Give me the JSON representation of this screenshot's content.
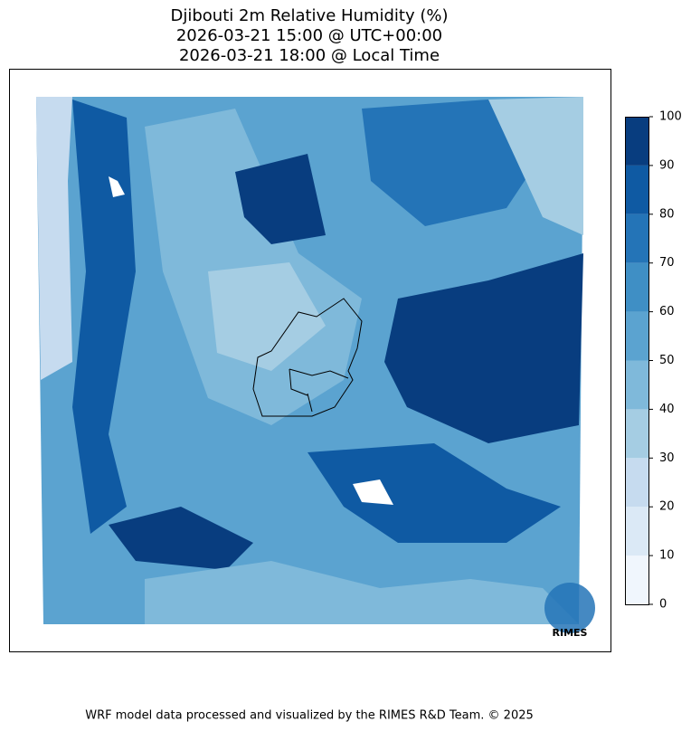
{
  "title": [
    "Djibouti 2m Relative Humidity (%)",
    "2026-03-21 15:00 @ UTC+00:00",
    "2026-03-21 18:00 @ Local Time"
  ],
  "colorbar": {
    "lim": [
      0,
      100
    ],
    "ticks": [
      0,
      10,
      20,
      30,
      40,
      50,
      60,
      70,
      80,
      90,
      100
    ],
    "colors": [
      "#f0f6fd",
      "#dbe9f6",
      "#c6dbef",
      "#a5cde3",
      "#7fb9da",
      "#5ba3d0",
      "#3f8fc5",
      "#2474b7",
      "#0f5aa3",
      "#083d7f"
    ]
  },
  "logo": "RIMES",
  "footer": "WRF model data processed and visualized by the RIMES R&D Team. © 2025"
}
